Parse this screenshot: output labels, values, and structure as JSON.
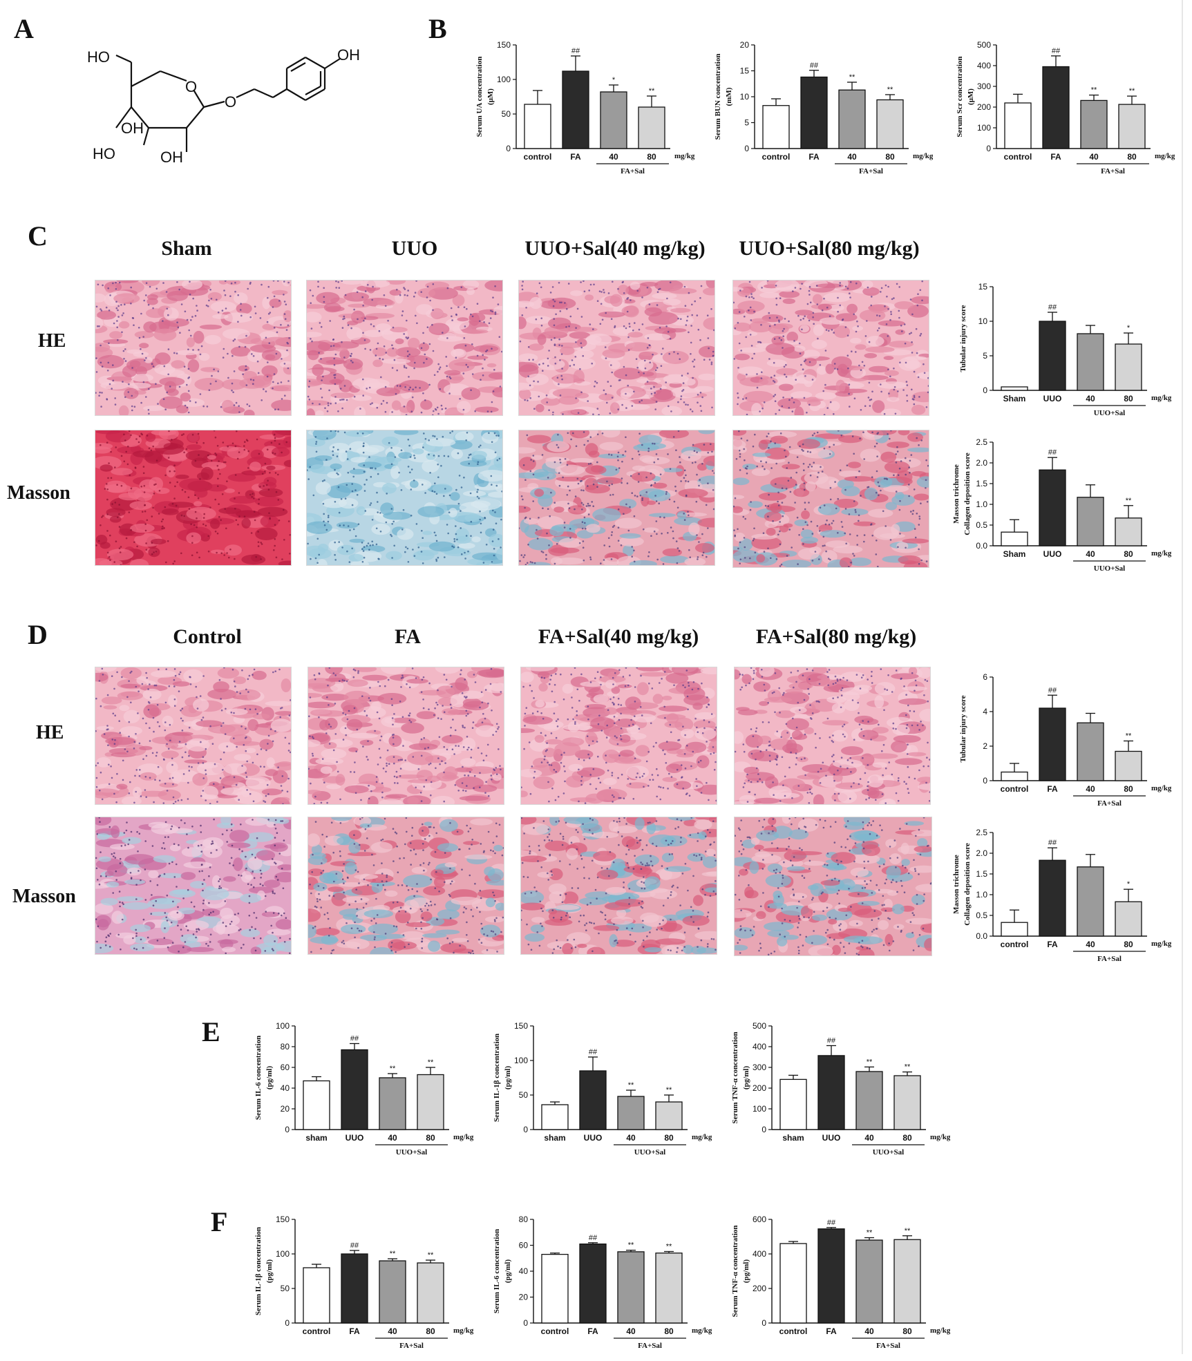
{
  "panels": {
    "A": "A",
    "B": "B",
    "C": "C",
    "D": "D",
    "E": "E",
    "F": "F"
  },
  "molecule": {
    "labels": [
      "HO",
      "OH",
      "O",
      "O",
      "OH",
      "HO",
      "OH"
    ]
  },
  "sectionC": {
    "columns": [
      "Sham",
      "UUO",
      "UUO+Sal(40 mg/kg)",
      "UUO+Sal(80 mg/kg)"
    ],
    "rows": [
      "HE",
      "Masson"
    ],
    "tissue_styles": [
      [
        "pink",
        "pink",
        "pink",
        "pink"
      ],
      [
        "red",
        "blue",
        "mixed",
        "mixed"
      ]
    ]
  },
  "sectionD": {
    "columns": [
      "Control",
      "FA",
      "FA+Sal(40 mg/kg)",
      "FA+Sal(80 mg/kg)"
    ],
    "rows": [
      "HE",
      "Masson"
    ],
    "tissue_styles": [
      [
        "pink",
        "pink",
        "pink",
        "pink"
      ],
      [
        "purple",
        "mixed",
        "mixed",
        "mixed"
      ]
    ]
  },
  "colors": {
    "control": "#ffffff",
    "model": "#2b2b2b",
    "dose40": "#9b9b9b",
    "dose80": "#d4d4d4"
  },
  "chart_data": [
    {
      "id": "B1",
      "type": "bar",
      "categories": [
        "control",
        "FA",
        "40",
        "80"
      ],
      "unit_label": "mg/kg",
      "group_label": "FA+Sal",
      "values": [
        64,
        112,
        82,
        60
      ],
      "errors": [
        20,
        22,
        10,
        16
      ],
      "marks": [
        "",
        "##",
        "*",
        "**"
      ],
      "ylabel": [
        "Serum UA concentration",
        "(μM)"
      ],
      "ylim": [
        0,
        150
      ],
      "yticks": [
        0,
        50,
        100,
        150
      ]
    },
    {
      "id": "B2",
      "type": "bar",
      "categories": [
        "control",
        "FA",
        "40",
        "80"
      ],
      "unit_label": "mg/kg",
      "group_label": "FA+Sal",
      "values": [
        8.3,
        13.8,
        11.3,
        9.4
      ],
      "errors": [
        1.3,
        1.3,
        1.5,
        1.0
      ],
      "marks": [
        "",
        "##",
        "**",
        "**"
      ],
      "ylabel": [
        "Serum BUN concentration",
        "(mM)"
      ],
      "ylim": [
        0,
        20
      ],
      "yticks": [
        0,
        5,
        10,
        15,
        20
      ]
    },
    {
      "id": "B3",
      "type": "bar",
      "categories": [
        "control",
        "FA",
        "40",
        "80"
      ],
      "unit_label": "mg/kg",
      "group_label": "FA+Sal",
      "values": [
        220,
        395,
        232,
        213
      ],
      "errors": [
        42,
        52,
        26,
        40
      ],
      "marks": [
        "",
        "##",
        "**",
        "**"
      ],
      "ylabel": [
        "Serum Scr concentration",
        "(μM)"
      ],
      "ylim": [
        0,
        500
      ],
      "yticks": [
        0,
        100,
        200,
        300,
        400,
        500
      ]
    },
    {
      "id": "C1",
      "type": "bar",
      "categories": [
        "Sham",
        "UUO",
        "40",
        "80"
      ],
      "unit_label": "mg/kg",
      "group_label": "UUO+Sal",
      "values": [
        0.5,
        10.0,
        8.2,
        6.7
      ],
      "errors": [
        0,
        1.3,
        1.2,
        1.6
      ],
      "marks": [
        "",
        "##",
        "",
        "*"
      ],
      "ylabel": [
        "Tubular injury score"
      ],
      "ylim": [
        0,
        15
      ],
      "yticks": [
        0,
        5,
        10,
        15
      ]
    },
    {
      "id": "C2",
      "type": "bar",
      "categories": [
        "Sham",
        "UUO",
        "40",
        "80"
      ],
      "unit_label": "mg/kg",
      "group_label": "UUO+Sal",
      "values": [
        0.33,
        1.83,
        1.17,
        0.67
      ],
      "errors": [
        0.3,
        0.3,
        0.3,
        0.3
      ],
      "marks": [
        "",
        "##",
        "",
        "**"
      ],
      "ylabel": [
        "Masson trichrome",
        "Collagen deposition score"
      ],
      "ylim": [
        0,
        2.5
      ],
      "yticks": [
        0,
        0.5,
        1.0,
        1.5,
        2.0,
        2.5
      ]
    },
    {
      "id": "D1",
      "type": "bar",
      "categories": [
        "control",
        "FA",
        "40",
        "80"
      ],
      "unit_label": "mg/kg",
      "group_label": "FA+Sal",
      "values": [
        0.5,
        4.2,
        3.35,
        1.7
      ],
      "errors": [
        0.5,
        0.75,
        0.55,
        0.6
      ],
      "marks": [
        "",
        "##",
        "",
        "**"
      ],
      "ylabel": [
        "Tubular injury score"
      ],
      "ylim": [
        0,
        6
      ],
      "yticks": [
        0,
        2,
        4,
        6
      ]
    },
    {
      "id": "D2",
      "type": "bar",
      "categories": [
        "control",
        "FA",
        "40",
        "80"
      ],
      "unit_label": "mg/kg",
      "group_label": "FA+Sal",
      "values": [
        0.33,
        1.83,
        1.67,
        0.83
      ],
      "errors": [
        0.3,
        0.3,
        0.3,
        0.3
      ],
      "marks": [
        "",
        "##",
        "",
        "*"
      ],
      "ylabel": [
        "Masson trichrome",
        "Collagen deposition score"
      ],
      "ylim": [
        0,
        2.5
      ],
      "yticks": [
        0,
        0.5,
        1.0,
        1.5,
        2.0,
        2.5
      ]
    },
    {
      "id": "E1",
      "type": "bar",
      "categories": [
        "sham",
        "UUO",
        "40",
        "80"
      ],
      "unit_label": "mg/kg",
      "group_label": "UUO+Sal",
      "values": [
        47,
        77,
        50,
        53
      ],
      "errors": [
        4,
        6,
        4,
        7
      ],
      "marks": [
        "",
        "##",
        "**",
        "**"
      ],
      "ylabel": [
        "Serum IL-6 concentration",
        "(pg/ml)"
      ],
      "ylim": [
        0,
        100
      ],
      "yticks": [
        0,
        20,
        40,
        60,
        80,
        100
      ]
    },
    {
      "id": "E2",
      "type": "bar",
      "categories": [
        "sham",
        "UUO",
        "40",
        "80"
      ],
      "unit_label": "mg/kg",
      "group_label": "UUO+Sal",
      "values": [
        36,
        85,
        48,
        40
      ],
      "errors": [
        4,
        20,
        9,
        10
      ],
      "marks": [
        "",
        "##",
        "**",
        "**"
      ],
      "ylabel": [
        "Serum IL-1β  concentration",
        "(pg/ml)"
      ],
      "ylim": [
        0,
        150
      ],
      "yticks": [
        0,
        50,
        100,
        150
      ]
    },
    {
      "id": "E3",
      "type": "bar",
      "categories": [
        "sham",
        "UUO",
        "40",
        "80"
      ],
      "unit_label": "mg/kg",
      "group_label": "UUO+Sal",
      "values": [
        242,
        357,
        280,
        260
      ],
      "errors": [
        20,
        48,
        22,
        18
      ],
      "marks": [
        "",
        "##",
        "**",
        "**"
      ],
      "ylabel": [
        "Serum TNF-α  concentration",
        "(pg/ml)"
      ],
      "ylim": [
        0,
        500
      ],
      "yticks": [
        0,
        100,
        200,
        300,
        400,
        500
      ]
    },
    {
      "id": "F1",
      "type": "bar",
      "categories": [
        "control",
        "FA",
        "40",
        "80"
      ],
      "unit_label": "mg/kg",
      "group_label": "FA+Sal",
      "values": [
        80,
        100,
        90,
        87
      ],
      "errors": [
        5,
        5,
        3,
        4
      ],
      "marks": [
        "",
        "##",
        "**",
        "**"
      ],
      "ylabel": [
        "Serum IL-1β  concentration",
        "(pg/ml)"
      ],
      "ylim": [
        0,
        150
      ],
      "yticks": [
        0,
        50,
        100,
        150
      ]
    },
    {
      "id": "F2",
      "type": "bar",
      "categories": [
        "control",
        "FA",
        "40",
        "80"
      ],
      "unit_label": "mg/kg",
      "group_label": "FA+Sal",
      "values": [
        53,
        61,
        55,
        54
      ],
      "errors": [
        1,
        1,
        1.2,
        1.2
      ],
      "marks": [
        "",
        "##",
        "**",
        "**"
      ],
      "ylabel": [
        "Serum IL-6 concentration",
        "(pg/ml)"
      ],
      "ylim": [
        0,
        80
      ],
      "yticks": [
        0,
        20,
        40,
        60,
        80
      ]
    },
    {
      "id": "F3",
      "type": "bar",
      "categories": [
        "control",
        "FA",
        "40",
        "80"
      ],
      "unit_label": "mg/kg",
      "group_label": "FA+Sal",
      "values": [
        460,
        545,
        480,
        483
      ],
      "errors": [
        12,
        8,
        14,
        22
      ],
      "marks": [
        "",
        "##",
        "**",
        "**"
      ],
      "ylabel": [
        "Serum TNF-α  concentration",
        "(pg/ml)"
      ],
      "ylim": [
        0,
        600
      ],
      "yticks": [
        0,
        200,
        400,
        600
      ]
    }
  ]
}
